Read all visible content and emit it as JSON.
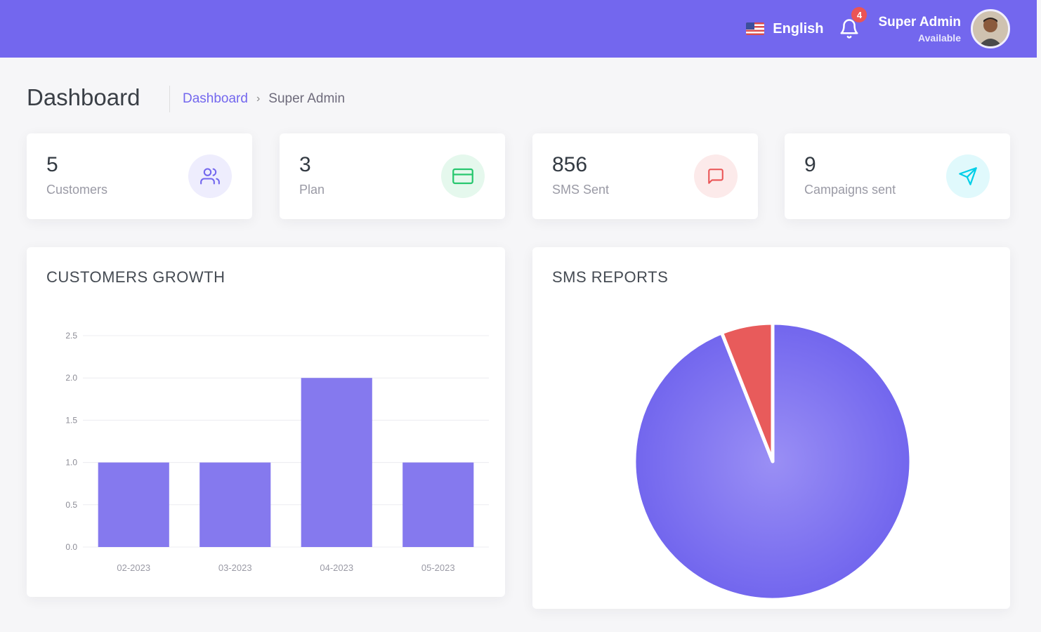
{
  "header": {
    "language": "English",
    "notification_count": "4",
    "user_name": "Super Admin",
    "user_status": "Available"
  },
  "page": {
    "title": "Dashboard",
    "breadcrumb": [
      "Dashboard",
      "Super Admin"
    ]
  },
  "stats": [
    {
      "value": "5",
      "label": "Customers",
      "icon": "users-icon",
      "color": "#7367ee",
      "bg": "#eeedfd"
    },
    {
      "value": "3",
      "label": "Plan",
      "icon": "credit-card-icon",
      "color": "#28c76f",
      "bg": "#e5f8ed"
    },
    {
      "value": "856",
      "label": "SMS Sent",
      "icon": "message-square-icon",
      "color": "#ea5455",
      "bg": "#fceaea"
    },
    {
      "value": "9",
      "label": "Campaigns sent",
      "icon": "send-icon",
      "color": "#00cfe8",
      "bg": "#e0f9fc"
    }
  ],
  "customers_growth": {
    "title": "CUSTOMERS GROWTH",
    "chart_data": {
      "type": "bar",
      "categories": [
        "02-2023",
        "03-2023",
        "04-2023",
        "05-2023"
      ],
      "values": [
        1,
        1,
        2,
        1
      ],
      "ylim": [
        0,
        2.5
      ],
      "yticks": [
        "0.0",
        "0.5",
        "1.0",
        "1.5",
        "2.0",
        "2.5"
      ],
      "grid": true,
      "color": "#8579ee"
    }
  },
  "sms_reports": {
    "title": "SMS REPORTS",
    "chart_data": {
      "type": "pie",
      "values": [
        94,
        6
      ],
      "colors": [
        "#7e70f0",
        "#e85b5b"
      ]
    }
  }
}
